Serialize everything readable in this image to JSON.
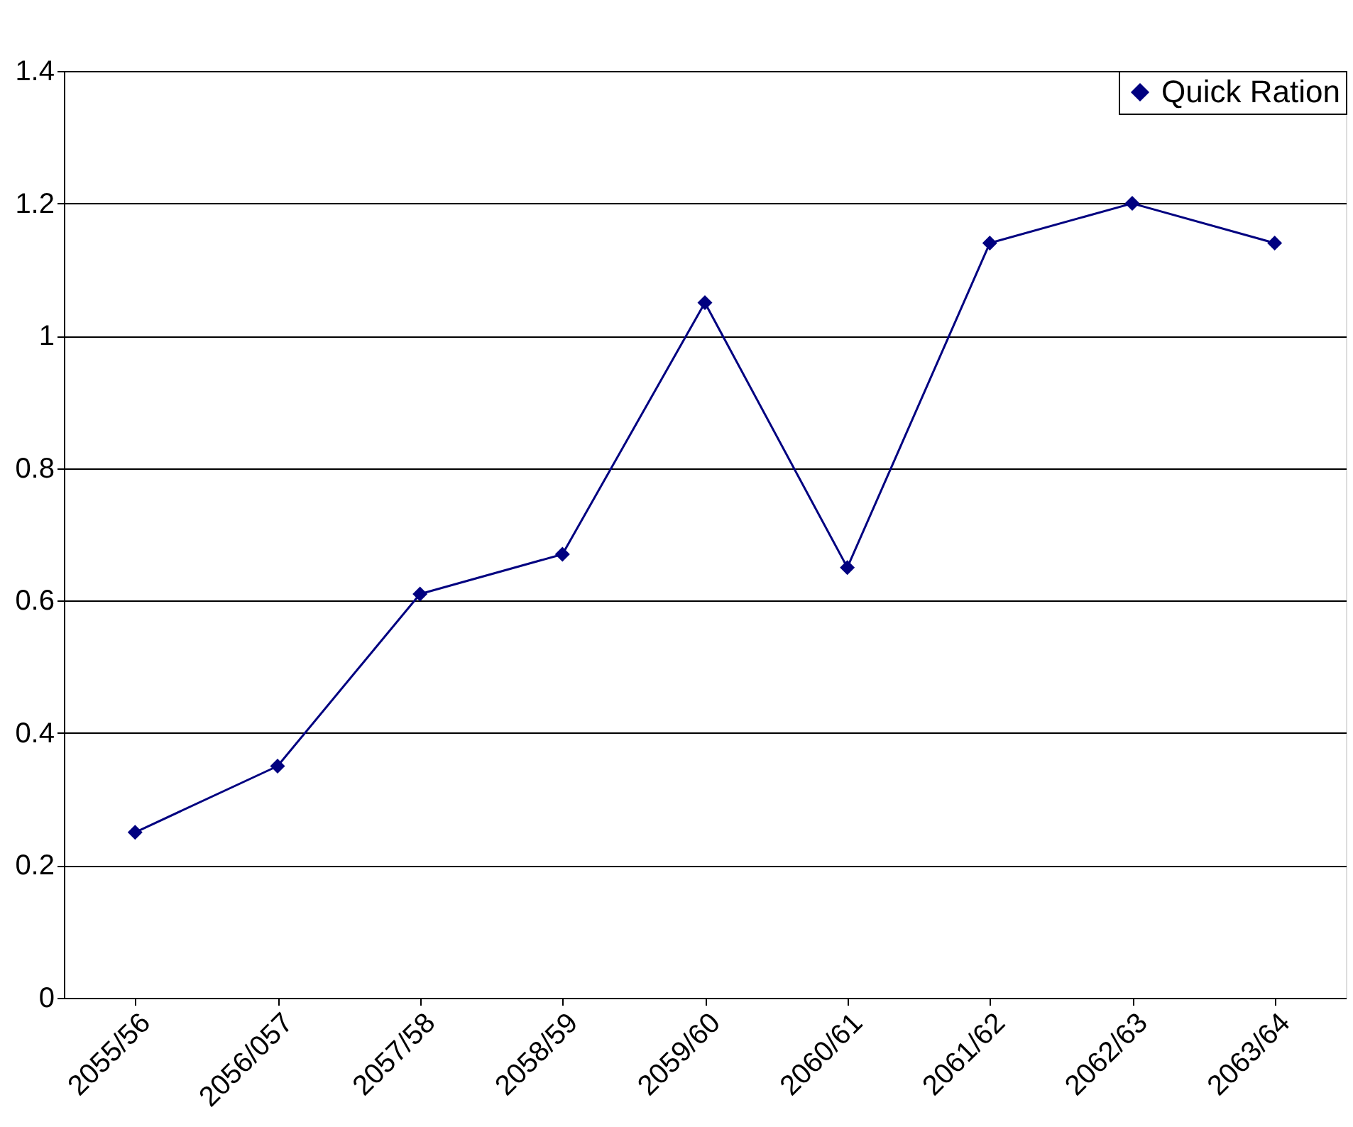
{
  "chart_data": {
    "type": "line",
    "categories": [
      "2055/56",
      "2056/057",
      "2057/58",
      "2058/59",
      "2059/60",
      "2060/61",
      "2061/62",
      "2062/63",
      "2063/64"
    ],
    "series": [
      {
        "name": "Quick Ration",
        "color": "#000080",
        "values": [
          0.25,
          0.35,
          0.61,
          0.67,
          1.05,
          0.65,
          1.14,
          1.2,
          1.14
        ]
      }
    ],
    "ylim": [
      0,
      1.4
    ],
    "yticks": [
      0,
      0.2,
      0.4,
      0.6,
      0.8,
      1,
      1.2,
      1.4
    ],
    "grid": "y",
    "legend": "top right",
    "marker": "diamond",
    "line_style": "solid"
  }
}
